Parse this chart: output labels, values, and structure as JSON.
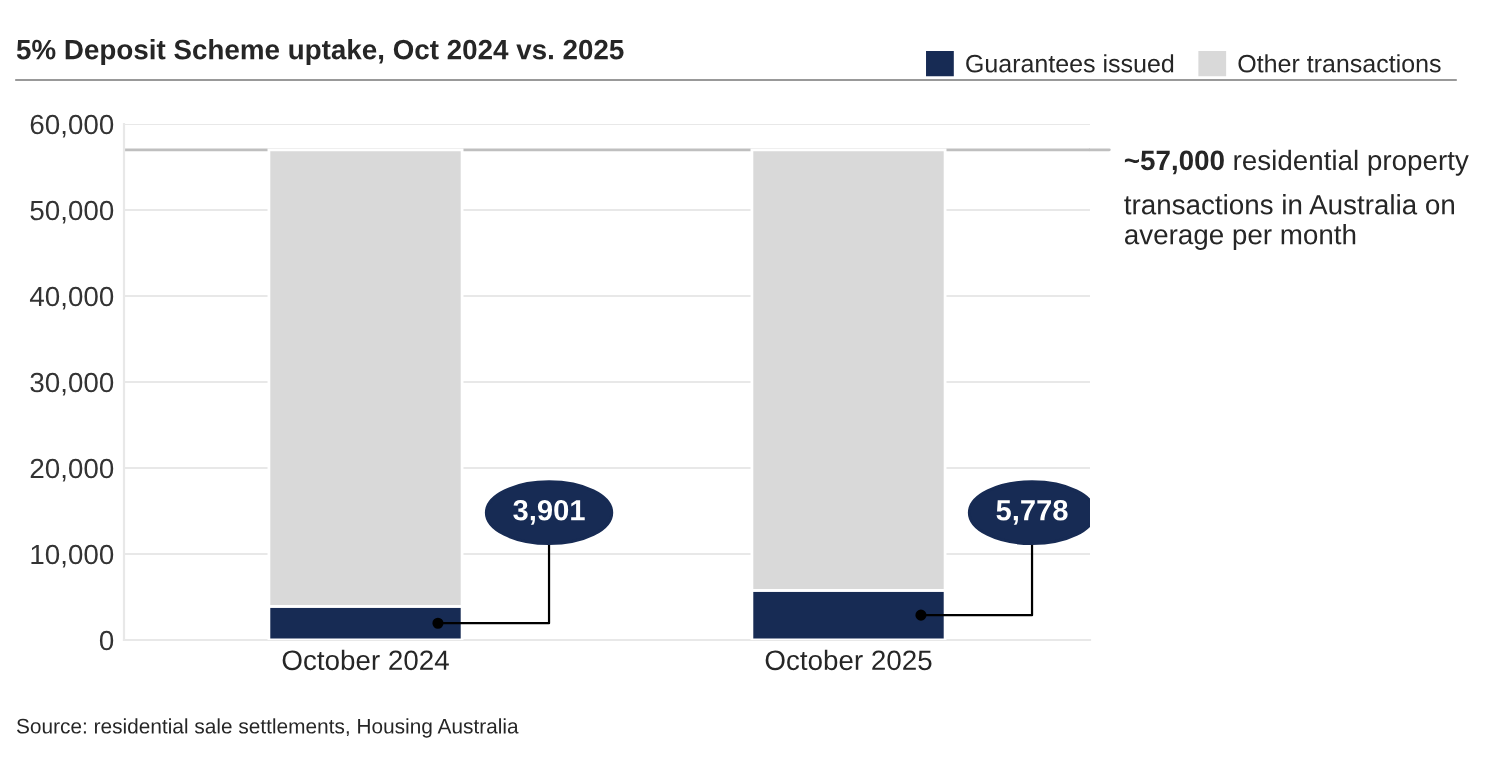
{
  "chart_data": {
    "type": "bar",
    "title": "5% Deposit Scheme uptake, Oct 2024 vs. 2025",
    "categories": [
      "October 2024",
      "October 2025"
    ],
    "stacked": true,
    "series": [
      {
        "name": "Guarantees issued",
        "color": "#172b54",
        "values": [
          3901,
          5778
        ],
        "value_labels": [
          "3,901",
          "5,778"
        ]
      },
      {
        "name": "Other transactions",
        "color": "#d9d9d9",
        "values": [
          53099,
          51222
        ]
      }
    ],
    "ylim": [
      0,
      60000
    ],
    "yticks": [
      {
        "value": 0,
        "label": "0"
      },
      {
        "value": 10000,
        "label": "10,000"
      },
      {
        "value": 20000,
        "label": "20,000"
      },
      {
        "value": 30000,
        "label": "30,000"
      },
      {
        "value": 40000,
        "label": "40,000"
      },
      {
        "value": 50000,
        "label": "50,000"
      },
      {
        "value": 60000,
        "label": "60,000"
      }
    ],
    "grid": "y",
    "legend": "top right",
    "ref_lines": [
      {
        "axis": "y",
        "value": 57000,
        "label": "~57,000 residential property transactions in Australia on average per month",
        "color": "#bfbfbf"
      }
    ],
    "annotations": [
      "Source: residential sale settlements, Housing Australia"
    ]
  }
}
